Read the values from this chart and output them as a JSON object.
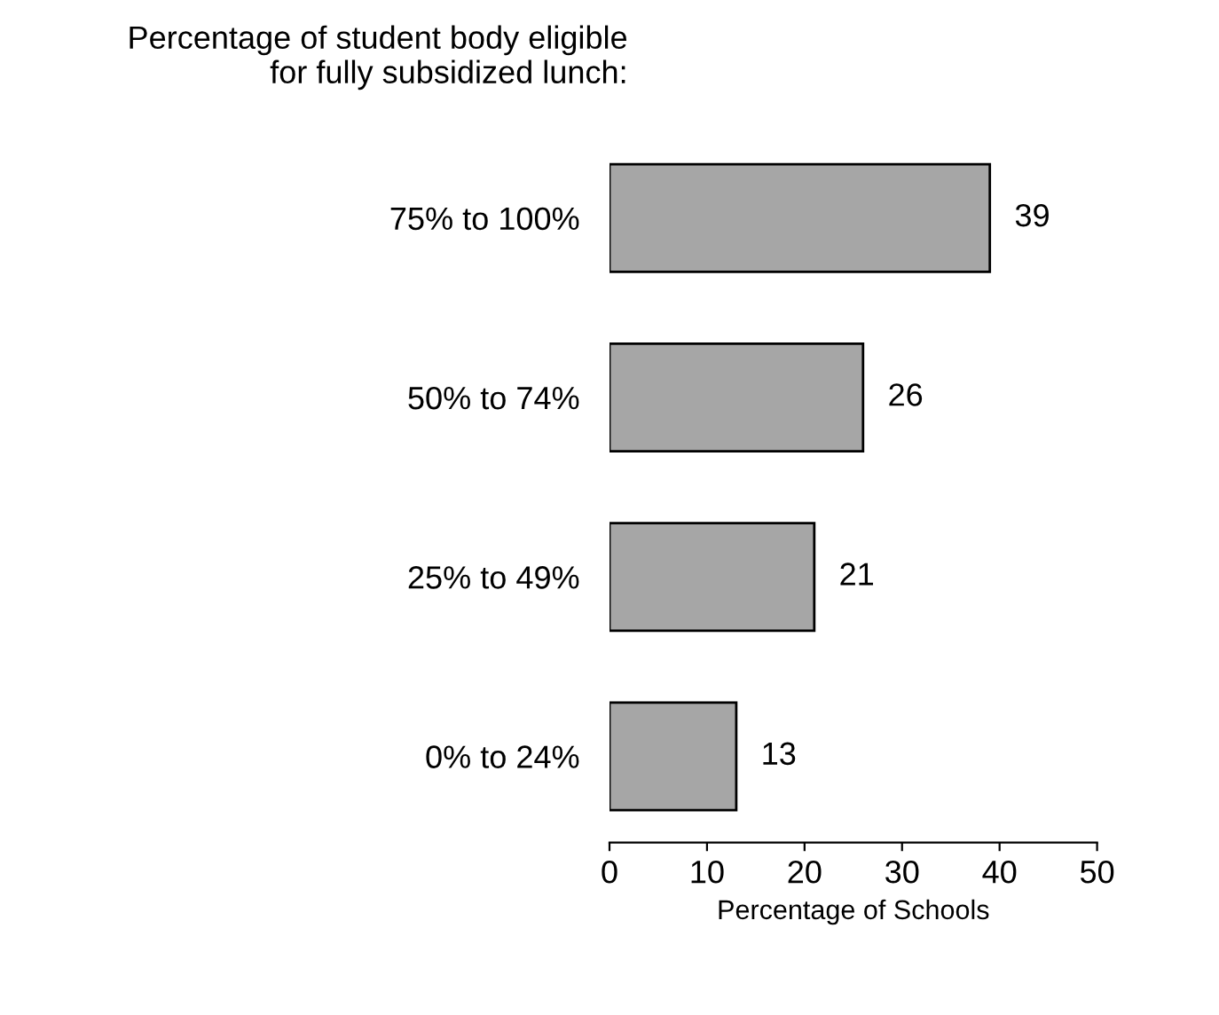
{
  "chart_data": {
    "type": "bar",
    "orientation": "horizontal",
    "title": "Percentage of student body eligible\nfor fully subsidized lunch:",
    "xlabel": "Percentage of Schools",
    "categories": [
      "75% to 100%",
      "50% to 74%",
      "25% to 49%",
      "0% to 24%"
    ],
    "values": [
      39,
      26,
      21,
      13
    ],
    "color": "#a6a6a6",
    "xlim": [
      0,
      50
    ],
    "xticks": [
      0,
      10,
      20,
      30,
      40,
      50
    ],
    "data_labels": true,
    "grid": false,
    "legend": false
  }
}
